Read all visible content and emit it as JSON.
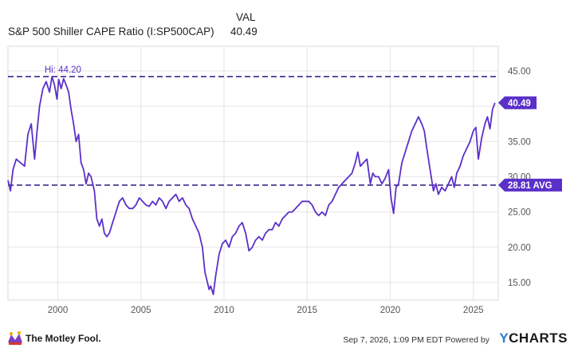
{
  "legend": {
    "column_header": "VAL",
    "series_name": "S&P 500 Shiller CAPE Ratio (I:SP500CAP)",
    "series_value": "40.49"
  },
  "footer": {
    "logo_text": "The Motley Fool.",
    "timestamp": "Sep 7, 2026, 1:09 PM EDT",
    "powered_by": "Powered by",
    "brand_y": "Y",
    "brand_rest": "CHARTS"
  },
  "colors": {
    "series": "#5b30c9",
    "plot_background": "#ffffff",
    "grid": "#e4e4e4",
    "reference_line": "#3a2a8c"
  },
  "chart_data": {
    "type": "line",
    "title": "",
    "xlabel": "",
    "ylabel": "",
    "xlim": [
      1997.0,
      2026.5
    ],
    "ylim": [
      12.5,
      48.5
    ],
    "x_ticks": [
      2000,
      2005,
      2010,
      2015,
      2020,
      2025
    ],
    "x_tick_labels": [
      "2000",
      "2005",
      "2010",
      "2015",
      "2020",
      "2025"
    ],
    "y_ticks": [
      15,
      20,
      25,
      30,
      35,
      40,
      45
    ],
    "y_tick_labels": [
      "15.00",
      "20.00",
      "25.00",
      "30.00",
      "35.00",
      "40.00",
      "45.00"
    ],
    "grid": true,
    "reference_lines": [
      {
        "value": 44.2,
        "label": "Hi: 44.20"
      },
      {
        "value": 28.81,
        "label": "28.81 AVG"
      }
    ],
    "last_value_label": "40.49",
    "series": [
      {
        "name": "S&P 500 Shiller CAPE Ratio (I:SP500CAP)",
        "x": [
          1997.0,
          1997.15,
          1997.3,
          1997.5,
          1997.75,
          1998.0,
          1998.2,
          1998.4,
          1998.6,
          1998.75,
          1998.9,
          1999.1,
          1999.3,
          1999.5,
          1999.65,
          1999.8,
          1999.95,
          2000.05,
          2000.2,
          2000.35,
          2000.5,
          2000.65,
          2000.8,
          2000.95,
          2001.1,
          2001.25,
          2001.4,
          2001.55,
          2001.7,
          2001.85,
          2002.0,
          2002.2,
          2002.35,
          2002.5,
          2002.65,
          2002.8,
          2002.95,
          2003.1,
          2003.3,
          2003.5,
          2003.7,
          2003.9,
          2004.1,
          2004.3,
          2004.5,
          2004.7,
          2004.9,
          2005.1,
          2005.3,
          2005.5,
          2005.7,
          2005.9,
          2006.1,
          2006.3,
          2006.5,
          2006.7,
          2006.9,
          2007.1,
          2007.3,
          2007.5,
          2007.7,
          2007.9,
          2008.1,
          2008.3,
          2008.5,
          2008.7,
          2008.85,
          2009.0,
          2009.1,
          2009.2,
          2009.35,
          2009.5,
          2009.7,
          2009.9,
          2010.1,
          2010.3,
          2010.5,
          2010.7,
          2010.9,
          2011.1,
          2011.3,
          2011.5,
          2011.7,
          2011.9,
          2012.1,
          2012.3,
          2012.5,
          2012.7,
          2012.9,
          2013.1,
          2013.3,
          2013.5,
          2013.7,
          2013.9,
          2014.1,
          2014.3,
          2014.5,
          2014.7,
          2014.9,
          2015.1,
          2015.3,
          2015.5,
          2015.7,
          2015.9,
          2016.1,
          2016.3,
          2016.5,
          2016.7,
          2016.9,
          2017.1,
          2017.3,
          2017.5,
          2017.7,
          2017.9,
          2018.05,
          2018.2,
          2018.4,
          2018.6,
          2018.8,
          2018.95,
          2019.1,
          2019.3,
          2019.5,
          2019.7,
          2019.9,
          2020.05,
          2020.2,
          2020.35,
          2020.5,
          2020.7,
          2020.9,
          2021.1,
          2021.3,
          2021.5,
          2021.7,
          2021.9,
          2022.05,
          2022.2,
          2022.4,
          2022.6,
          2022.75,
          2022.9,
          2023.1,
          2023.3,
          2023.5,
          2023.7,
          2023.85,
          2024.0,
          2024.2,
          2024.4,
          2024.6,
          2024.8,
          2025.0,
          2025.15,
          2025.3,
          2025.5,
          2025.7,
          2025.85,
          2026.0,
          2026.15,
          2026.3
        ],
        "values": [
          29.5,
          28.0,
          31.0,
          32.5,
          32.0,
          31.5,
          36.0,
          37.5,
          32.5,
          36.5,
          40.0,
          42.5,
          43.5,
          42.0,
          44.2,
          43.0,
          41.0,
          43.8,
          42.5,
          43.9,
          43.0,
          42.0,
          39.5,
          37.5,
          35.0,
          36.0,
          32.0,
          31.0,
          29.0,
          30.5,
          30.0,
          28.0,
          24.0,
          23.0,
          24.0,
          22.0,
          21.5,
          22.0,
          23.5,
          25.0,
          26.5,
          27.0,
          26.0,
          25.5,
          25.5,
          26.0,
          27.0,
          26.5,
          26.0,
          25.8,
          26.5,
          26.0,
          27.0,
          26.5,
          25.5,
          26.5,
          27.0,
          27.5,
          26.5,
          27.0,
          26.0,
          25.5,
          24.0,
          23.0,
          22.0,
          20.0,
          16.5,
          15.0,
          14.0,
          14.5,
          13.3,
          16.0,
          19.0,
          20.5,
          21.0,
          20.0,
          21.5,
          22.0,
          23.0,
          23.5,
          22.0,
          19.5,
          20.0,
          21.0,
          21.5,
          21.0,
          22.0,
          22.5,
          22.5,
          23.5,
          23.0,
          24.0,
          24.5,
          25.0,
          25.0,
          25.5,
          26.0,
          26.5,
          26.5,
          26.5,
          26.0,
          25.0,
          24.5,
          25.0,
          24.5,
          26.0,
          26.5,
          27.5,
          28.5,
          29.0,
          29.5,
          30.0,
          30.5,
          32.0,
          33.5,
          31.5,
          32.0,
          32.5,
          29.0,
          30.5,
          30.0,
          30.0,
          29.0,
          29.8,
          31.0,
          27.0,
          24.8,
          28.5,
          29.0,
          32.0,
          33.5,
          35.0,
          36.5,
          37.5,
          38.5,
          37.5,
          36.5,
          34.0,
          31.0,
          28.0,
          29.0,
          27.5,
          28.5,
          28.0,
          29.0,
          30.0,
          28.5,
          30.5,
          31.5,
          33.0,
          34.0,
          35.0,
          36.5,
          37.0,
          32.5,
          35.5,
          37.5,
          38.5,
          36.8,
          39.5,
          40.49
        ]
      }
    ]
  }
}
